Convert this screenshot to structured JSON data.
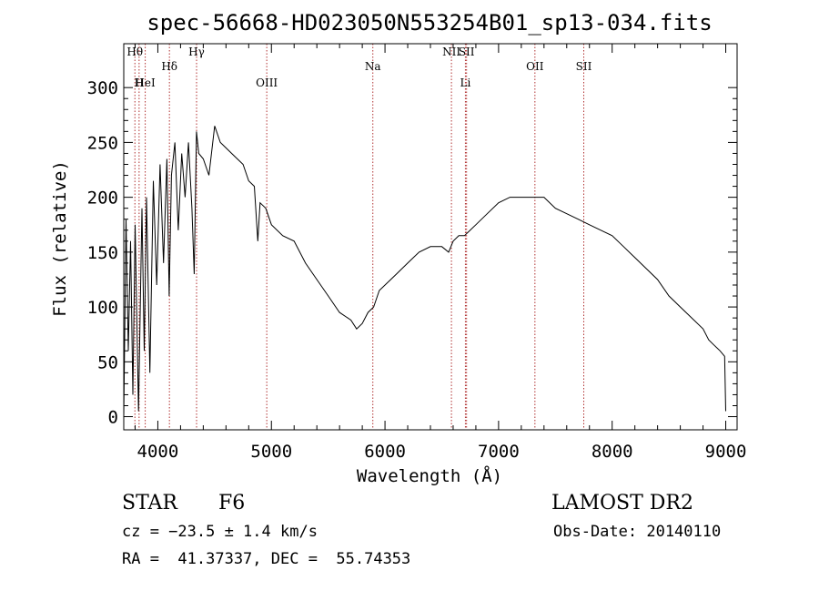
{
  "chart_data": {
    "type": "line",
    "title": "spec-56668-HD023050N553254B01_sp13-034.fits",
    "xlabel": "Wavelength (Å)",
    "ylabel": "Flux (relative)",
    "xlim": [
      3700,
      9100
    ],
    "ylim": [
      -12,
      340
    ],
    "xticks": [
      4000,
      5000,
      6000,
      7000,
      8000,
      9000
    ],
    "yticks": [
      0,
      50,
      100,
      150,
      200,
      250,
      300
    ],
    "grid": false,
    "line_color": "#000000",
    "marker_color": "#b03030",
    "series": [
      {
        "x": [
          3700,
          3720,
          3740,
          3760,
          3780,
          3800,
          3830,
          3860,
          3880,
          3900,
          3930,
          3960,
          3990,
          4020,
          4050,
          4080,
          4100,
          4120,
          4150,
          4180,
          4210,
          4240,
          4270,
          4300,
          4320,
          4340,
          4360,
          4400,
          4450,
          4500,
          4550,
          4600,
          4650,
          4700,
          4750,
          4800,
          4850,
          4880,
          4900,
          4950,
          5000,
          5100,
          5200,
          5300,
          5400,
          5500,
          5600,
          5700,
          5750,
          5800,
          5850,
          5900,
          5950,
          6000,
          6100,
          6200,
          6300,
          6400,
          6500,
          6560,
          6600,
          6650,
          6700,
          6800,
          6900,
          7000,
          7100,
          7200,
          7300,
          7400,
          7500,
          7600,
          7700,
          7800,
          7900,
          8000,
          8100,
          8200,
          8300,
          8400,
          8500,
          8600,
          8700,
          8800,
          8850,
          8900,
          8950,
          8990,
          9000
        ],
        "values": [
          0,
          180,
          60,
          160,
          20,
          175,
          5,
          190,
          60,
          200,
          40,
          215,
          120,
          230,
          140,
          235,
          110,
          220,
          250,
          170,
          240,
          200,
          250,
          190,
          130,
          260,
          240,
          235,
          220,
          265,
          250,
          245,
          240,
          235,
          230,
          215,
          210,
          160,
          195,
          190,
          175,
          165,
          160,
          140,
          125,
          110,
          95,
          88,
          80,
          85,
          95,
          100,
          115,
          120,
          130,
          140,
          150,
          155,
          155,
          150,
          160,
          165,
          165,
          175,
          185,
          195,
          200,
          200,
          200,
          200,
          190,
          185,
          180,
          175,
          170,
          165,
          155,
          145,
          135,
          125,
          110,
          100,
          90,
          80,
          70,
          65,
          60,
          55,
          5
        ]
      }
    ],
    "lines": [
      {
        "label": "Hθ",
        "x": 3798,
        "row": 0
      },
      {
        "label": "H",
        "x": 3835,
        "row": 2
      },
      {
        "label": "HeI",
        "x": 3889,
        "row": 2
      },
      {
        "label": "Hδ",
        "x": 4102,
        "row": 1
      },
      {
        "label": "Hγ",
        "x": 4341,
        "row": 0
      },
      {
        "label": "OIII",
        "x": 4959,
        "row": 2
      },
      {
        "label": "Na",
        "x": 5893,
        "row": 1
      },
      {
        "label": "NII",
        "x": 6585,
        "row": 0
      },
      {
        "label": "SII",
        "x": 6718,
        "row": 0
      },
      {
        "label": "Li",
        "x": 6708,
        "row": 2
      },
      {
        "label": "OII",
        "x": 7320,
        "row": 1
      },
      {
        "label": "SII",
        "x": 7750,
        "row": 1
      }
    ]
  },
  "info": {
    "class": "STAR",
    "subclass": "F6",
    "survey": "LAMOST DR2",
    "cz": "cz = −23.5 ± 1.4 km/s",
    "obs_date": "Obs-Date: 20140110",
    "radec": "RA =  41.37337, DEC =  55.74353"
  }
}
